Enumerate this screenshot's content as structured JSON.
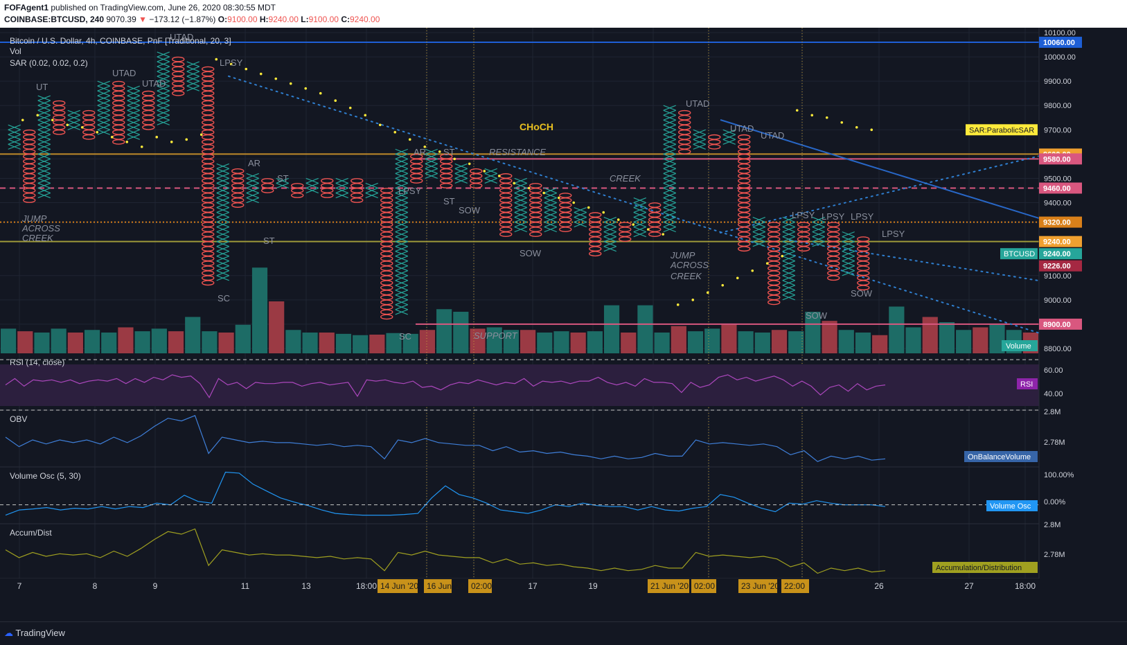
{
  "header": {
    "author": "FOFAgent1",
    "published": " published on TradingView.com, June 26, 2020 08:30:55 MDT",
    "symbol": "COINBASE:BTCUSD, 240",
    "last": "9070.39",
    "change": "−173.12 (−1.87%)",
    "o_label": "O:",
    "o_val": "9100.00",
    "h_label": "H:",
    "h_val": "9240.00",
    "l_label": "L:",
    "l_val": "9100.00",
    "c_label": "C:",
    "c_val": "9240.00"
  },
  "legend": {
    "title": "Bitcoin / U.S. Dollar, 4h, COINBASE, PnF [Traditional, 20, 3]",
    "vol": "Vol",
    "sar": "SAR (0.02, 0.02, 0.2)"
  },
  "price_axis": {
    "ticks": [
      "10100.00",
      "10000.00",
      "9900.00",
      "9800.00",
      "9700.00",
      "9500.00",
      "9400.00",
      "9100.00",
      "9000.00",
      "8800.00"
    ],
    "tick_values": [
      10100,
      10000,
      9900,
      9800,
      9700,
      9500,
      9400,
      9100,
      9000,
      8800
    ],
    "badges": [
      {
        "text": "10060.00",
        "value": 10060,
        "color": "#1e5fd6"
      },
      {
        "text": "9600.00",
        "value": 9600,
        "color": "#f0a030"
      },
      {
        "text": "9580.00",
        "value": 9580,
        "color": "#d9577f"
      },
      {
        "text": "9460.00",
        "value": 9460,
        "color": "#d9577f"
      },
      {
        "text": "9320.00",
        "value": 9320,
        "color": "#d9801a"
      },
      {
        "text": "9240.00",
        "value": 9240,
        "color": "#f0a030"
      },
      {
        "text": "9240.00",
        "value": 9190,
        "color": "#26a69a"
      },
      {
        "text": "9226.00",
        "value": 9140,
        "color": "#a52842"
      },
      {
        "text": "8900.00",
        "value": 8900,
        "color": "#d9577f"
      }
    ],
    "btcusd_label": "BTCUSD",
    "sar_label": "SAR:ParabolicSAR",
    "volume_label": "Volume"
  },
  "annotations": {
    "choch": "CHoCH",
    "words": [
      "UT",
      "UTAD",
      "UTAD",
      "UTAD",
      "LPSY",
      "AR",
      "ST",
      "ST",
      "SC",
      "JUMP",
      "ACROSS",
      "CREEK",
      "LPSY",
      "AR",
      "ST",
      "ST",
      "SOW",
      "RESISTANCE",
      "CREEK",
      "SOW",
      "SUPPORT",
      "SC",
      "UTAD",
      "UTAD",
      "UTAD",
      "JUMP",
      "ACROSS",
      "CREEK",
      "LPSY",
      "LPSY",
      "LPSY",
      "LPSY",
      "SOW",
      "SOW"
    ]
  },
  "rsi": {
    "title": "RSI (14, close)",
    "ticks": [
      "60.00",
      "40.00"
    ],
    "badge": "RSI"
  },
  "obv": {
    "title": "OBV",
    "ticks": [
      "2.8M",
      "2.78M"
    ],
    "badge": "OnBalanceVolume"
  },
  "vosc": {
    "title": "Volume Osc (5, 30)",
    "ticks": [
      "100.00%",
      "0.00%"
    ],
    "badge": "Volume Osc"
  },
  "ad": {
    "title": "Accum/Dist",
    "ticks": [
      "2.8M",
      "2.78M"
    ],
    "badge": "Accumulation/Distribution"
  },
  "time_axis": {
    "labels": [
      "7",
      "8",
      "9",
      "11",
      "13",
      "18:00",
      "17",
      "19",
      "1",
      "26",
      "27",
      "18:00"
    ],
    "highlights": [
      "14 Jun '20",
      "16 Jun '20",
      "02:00",
      "21 Jun '20",
      "02:00",
      "23 Jun '20",
      "22:00"
    ]
  },
  "footer": {
    "brand": "TradingView"
  },
  "colors": {
    "bg": "#131722",
    "x": "#26a69a",
    "o": "#ef5350",
    "grid": "#1f2433",
    "sar": "#ffeb3b",
    "rsi": "#9c27b0",
    "obv": "#2962ff",
    "vosc": "#2196f3",
    "ad": "#c0c000"
  },
  "chart_data": {
    "type": "pnf",
    "title": "Bitcoin / U.S. Dollar, 4h, COINBASE, PnF [Traditional, 20, 3]",
    "box_size": 20,
    "reversal": 3,
    "ylim": [
      8780,
      10120
    ],
    "columns": [
      {
        "type": "X",
        "low": 9620,
        "high": 9700
      },
      {
        "type": "O",
        "low": 9400,
        "high": 9680
      },
      {
        "type": "X",
        "low": 9420,
        "high": 9820
      },
      {
        "type": "O",
        "low": 9680,
        "high": 9800
      },
      {
        "type": "X",
        "low": 9700,
        "high": 9760
      },
      {
        "type": "O",
        "low": 9660,
        "high": 9760
      },
      {
        "type": "X",
        "low": 9680,
        "high": 9880
      },
      {
        "type": "O",
        "low": 9640,
        "high": 9880
      },
      {
        "type": "X",
        "low": 9660,
        "high": 9860
      },
      {
        "type": "O",
        "low": 9700,
        "high": 9840
      },
      {
        "type": "X",
        "low": 9720,
        "high": 10000
      },
      {
        "type": "O",
        "low": 9840,
        "high": 9980
      },
      {
        "type": "X",
        "low": 9860,
        "high": 9960
      },
      {
        "type": "O",
        "low": 9060,
        "high": 9940
      },
      {
        "type": "X",
        "low": 9080,
        "high": 9540
      },
      {
        "type": "O",
        "low": 9380,
        "high": 9520
      },
      {
        "type": "X",
        "low": 9400,
        "high": 9500
      },
      {
        "type": "O",
        "low": 9440,
        "high": 9480
      },
      {
        "type": "X",
        "low": 9460,
        "high": 9480
      },
      {
        "type": "O",
        "low": 9420,
        "high": 9460
      },
      {
        "type": "X",
        "low": 9440,
        "high": 9480
      },
      {
        "type": "O",
        "low": 9420,
        "high": 9480
      },
      {
        "type": "X",
        "low": 9420,
        "high": 9480
      },
      {
        "type": "O",
        "low": 9400,
        "high": 9480
      },
      {
        "type": "X",
        "low": 9420,
        "high": 9460
      },
      {
        "type": "O",
        "low": 8920,
        "high": 9440
      },
      {
        "type": "X",
        "low": 8940,
        "high": 9600
      },
      {
        "type": "O",
        "low": 9480,
        "high": 9580
      },
      {
        "type": "X",
        "low": 9500,
        "high": 9600
      },
      {
        "type": "O",
        "low": 9460,
        "high": 9580
      },
      {
        "type": "X",
        "low": 9480,
        "high": 9540
      },
      {
        "type": "O",
        "low": 9460,
        "high": 9520
      },
      {
        "type": "X",
        "low": 9480,
        "high": 9520
      },
      {
        "type": "O",
        "low": 9260,
        "high": 9500
      },
      {
        "type": "X",
        "low": 9280,
        "high": 9480
      },
      {
        "type": "O",
        "low": 9260,
        "high": 9460
      },
      {
        "type": "X",
        "low": 9280,
        "high": 9440
      },
      {
        "type": "O",
        "low": 9280,
        "high": 9420
      },
      {
        "type": "X",
        "low": 9300,
        "high": 9360
      },
      {
        "type": "O",
        "low": 9180,
        "high": 9340
      },
      {
        "type": "X",
        "low": 9200,
        "high": 9320
      },
      {
        "type": "O",
        "low": 9240,
        "high": 9300
      },
      {
        "type": "X",
        "low": 9260,
        "high": 9400
      },
      {
        "type": "O",
        "low": 9260,
        "high": 9380
      },
      {
        "type": "X",
        "low": 9280,
        "high": 9780
      },
      {
        "type": "O",
        "low": 9600,
        "high": 9760
      },
      {
        "type": "X",
        "low": 9620,
        "high": 9680
      },
      {
        "type": "O",
        "low": 9620,
        "high": 9660
      },
      {
        "type": "X",
        "low": 9640,
        "high": 9680
      },
      {
        "type": "O",
        "low": 9200,
        "high": 9660
      },
      {
        "type": "X",
        "low": 9220,
        "high": 9320
      },
      {
        "type": "O",
        "low": 8980,
        "high": 9300
      },
      {
        "type": "X",
        "low": 9000,
        "high": 9320
      },
      {
        "type": "O",
        "low": 9200,
        "high": 9300
      },
      {
        "type": "X",
        "low": 9220,
        "high": 9320
      },
      {
        "type": "O",
        "low": 9080,
        "high": 9300
      },
      {
        "type": "X",
        "low": 9100,
        "high": 9260
      },
      {
        "type": "O",
        "low": 9040,
        "high": 9240
      }
    ],
    "sar": [
      9740,
      9760,
      9740,
      9720,
      9710,
      9690,
      9670,
      9650,
      9630,
      9670,
      9650,
      9660,
      9680,
      9990,
      9970,
      9950,
      9930,
      9910,
      9890,
      9870,
      9850,
      9820,
      9790,
      9760,
      9720,
      9690,
      9660,
      9630,
      9610,
      9580,
      9560,
      9530,
      9510,
      9480,
      9460,
      9440,
      9420,
      9400,
      9380,
      9360,
      9330,
      9310,
      9290,
      9270,
      8980,
      9000,
      9030,
      9060,
      9090,
      9120,
      9150,
      9180,
      9780,
      9760,
      9750,
      9730,
      9710,
      9700
    ],
    "volume": [
      95,
      85,
      80,
      95,
      80,
      90,
      80,
      100,
      85,
      95,
      85,
      140,
      85,
      80,
      110,
      330,
      200,
      90,
      80,
      80,
      75,
      70,
      72,
      78,
      75,
      90,
      170,
      160,
      95,
      100,
      90,
      90,
      80,
      85,
      80,
      85,
      185,
      80,
      185,
      80,
      105,
      85,
      95,
      110,
      85,
      80,
      90,
      85,
      160,
      125,
      90,
      80,
      70,
      180,
      100,
      140,
      120,
      90,
      100,
      110,
      90,
      80
    ],
    "volume_ylim": [
      0,
      400
    ],
    "rsi": [
      50,
      55,
      49,
      54,
      53,
      54,
      52,
      54,
      51,
      53,
      54,
      53,
      55,
      51,
      55,
      52,
      56,
      54,
      58,
      56,
      57,
      51,
      40,
      55,
      50,
      52,
      47,
      52,
      51,
      51,
      52,
      52,
      49,
      51,
      52,
      50,
      51,
      52,
      41,
      54,
      53,
      54,
      52,
      51,
      53,
      48,
      49,
      46,
      50,
      52,
      51,
      54,
      52,
      50,
      52,
      51,
      55,
      49,
      53,
      52,
      53,
      51,
      53,
      53,
      56,
      52,
      50,
      52,
      49,
      55,
      52,
      52,
      51,
      44,
      52,
      48,
      50,
      56,
      58,
      54,
      56,
      53,
      55,
      57,
      54,
      49,
      53,
      49,
      42,
      48,
      50,
      45,
      51,
      46,
      49,
      50
    ],
    "rsi_ylim": [
      30,
      75
    ],
    "rsi_levels": [
      70,
      60,
      40,
      30
    ],
    "obv": [
      2.792,
      2.785,
      2.79,
      2.787,
      2.79,
      2.788,
      2.79,
      2.787,
      2.792,
      2.788,
      2.793,
      2.8,
      2.806,
      2.804,
      2.808,
      2.78,
      2.792,
      2.79,
      2.788,
      2.789,
      2.788,
      2.788,
      2.787,
      2.786,
      2.787,
      2.785,
      2.786,
      2.785,
      2.776,
      2.79,
      2.788,
      2.791,
      2.788,
      2.787,
      2.786,
      2.786,
      2.782,
      2.785,
      2.781,
      2.782,
      2.78,
      2.781,
      2.779,
      2.778,
      2.776,
      2.778,
      2.776,
      2.777,
      2.78,
      2.778,
      2.778,
      2.79,
      2.787,
      2.788,
      2.787,
      2.786,
      2.787,
      2.785,
      2.779,
      2.782,
      2.774,
      2.778,
      2.776,
      2.778,
      2.775,
      2.776
    ],
    "obv_ylim": [
      2.77,
      2.812
    ],
    "volume_osc": [
      -30,
      -15,
      -12,
      -8,
      -15,
      -10,
      -12,
      -5,
      -12,
      -5,
      -8,
      5,
      0,
      28,
      10,
      5,
      95,
      92,
      60,
      40,
      20,
      8,
      -2,
      -15,
      -25,
      -28,
      -30,
      -30,
      -30,
      -28,
      -25,
      20,
      55,
      30,
      20,
      5,
      -15,
      -20,
      -25,
      -15,
      0,
      -5,
      5,
      -2,
      -5,
      -5,
      -15,
      -5,
      -15,
      -18,
      -10,
      -5,
      30,
      22,
      5,
      -10,
      -20,
      5,
      2,
      12,
      5,
      0,
      0,
      0,
      -5
    ],
    "volume_osc_ylim": [
      -55,
      110
    ],
    "accum_dist": [
      2.792,
      2.786,
      2.79,
      2.787,
      2.789,
      2.788,
      2.789,
      2.786,
      2.791,
      2.787,
      2.793,
      2.8,
      2.806,
      2.804,
      2.808,
      2.78,
      2.792,
      2.79,
      2.788,
      2.789,
      2.788,
      2.788,
      2.787,
      2.786,
      2.787,
      2.785,
      2.786,
      2.785,
      2.776,
      2.79,
      2.788,
      2.791,
      2.788,
      2.787,
      2.786,
      2.786,
      2.782,
      2.785,
      2.781,
      2.782,
      2.78,
      2.781,
      2.779,
      2.778,
      2.776,
      2.778,
      2.776,
      2.777,
      2.78,
      2.778,
      2.778,
      2.79,
      2.787,
      2.788,
      2.787,
      2.786,
      2.787,
      2.785,
      2.779,
      2.782,
      2.774,
      2.778,
      2.776,
      2.778,
      2.775,
      2.776
    ],
    "accum_dist_ylim": [
      2.77,
      2.812
    ],
    "levels": [
      10060,
      9600,
      9580,
      9460,
      9320,
      9240,
      8900
    ]
  }
}
